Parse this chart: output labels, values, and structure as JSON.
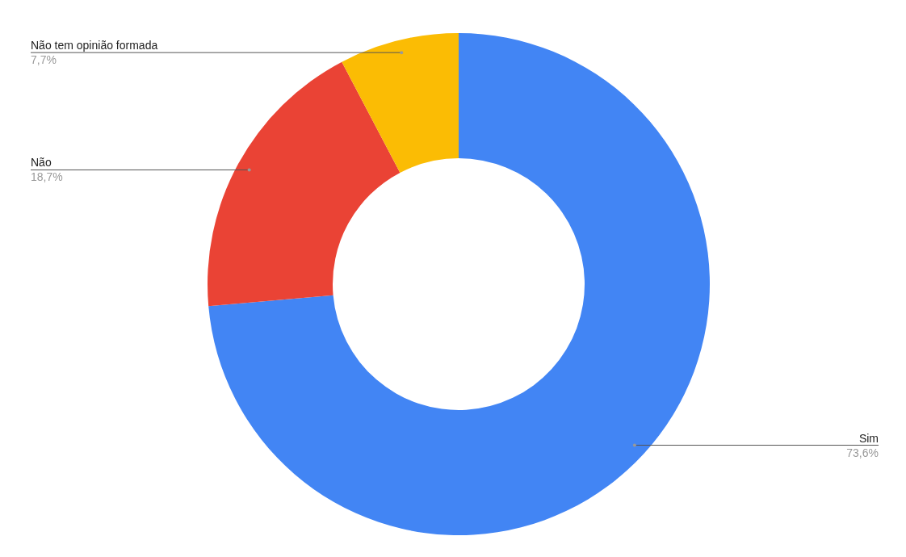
{
  "chart_data": {
    "type": "donut",
    "categories": [
      "Sim",
      "Não",
      "Não tem opinião formada"
    ],
    "values": [
      73.6,
      18.7,
      7.7
    ],
    "colors": [
      "#4285f4",
      "#ea4335",
      "#fbbc04"
    ],
    "value_labels": [
      "73,6%",
      "18,7%",
      "7,7%"
    ]
  }
}
